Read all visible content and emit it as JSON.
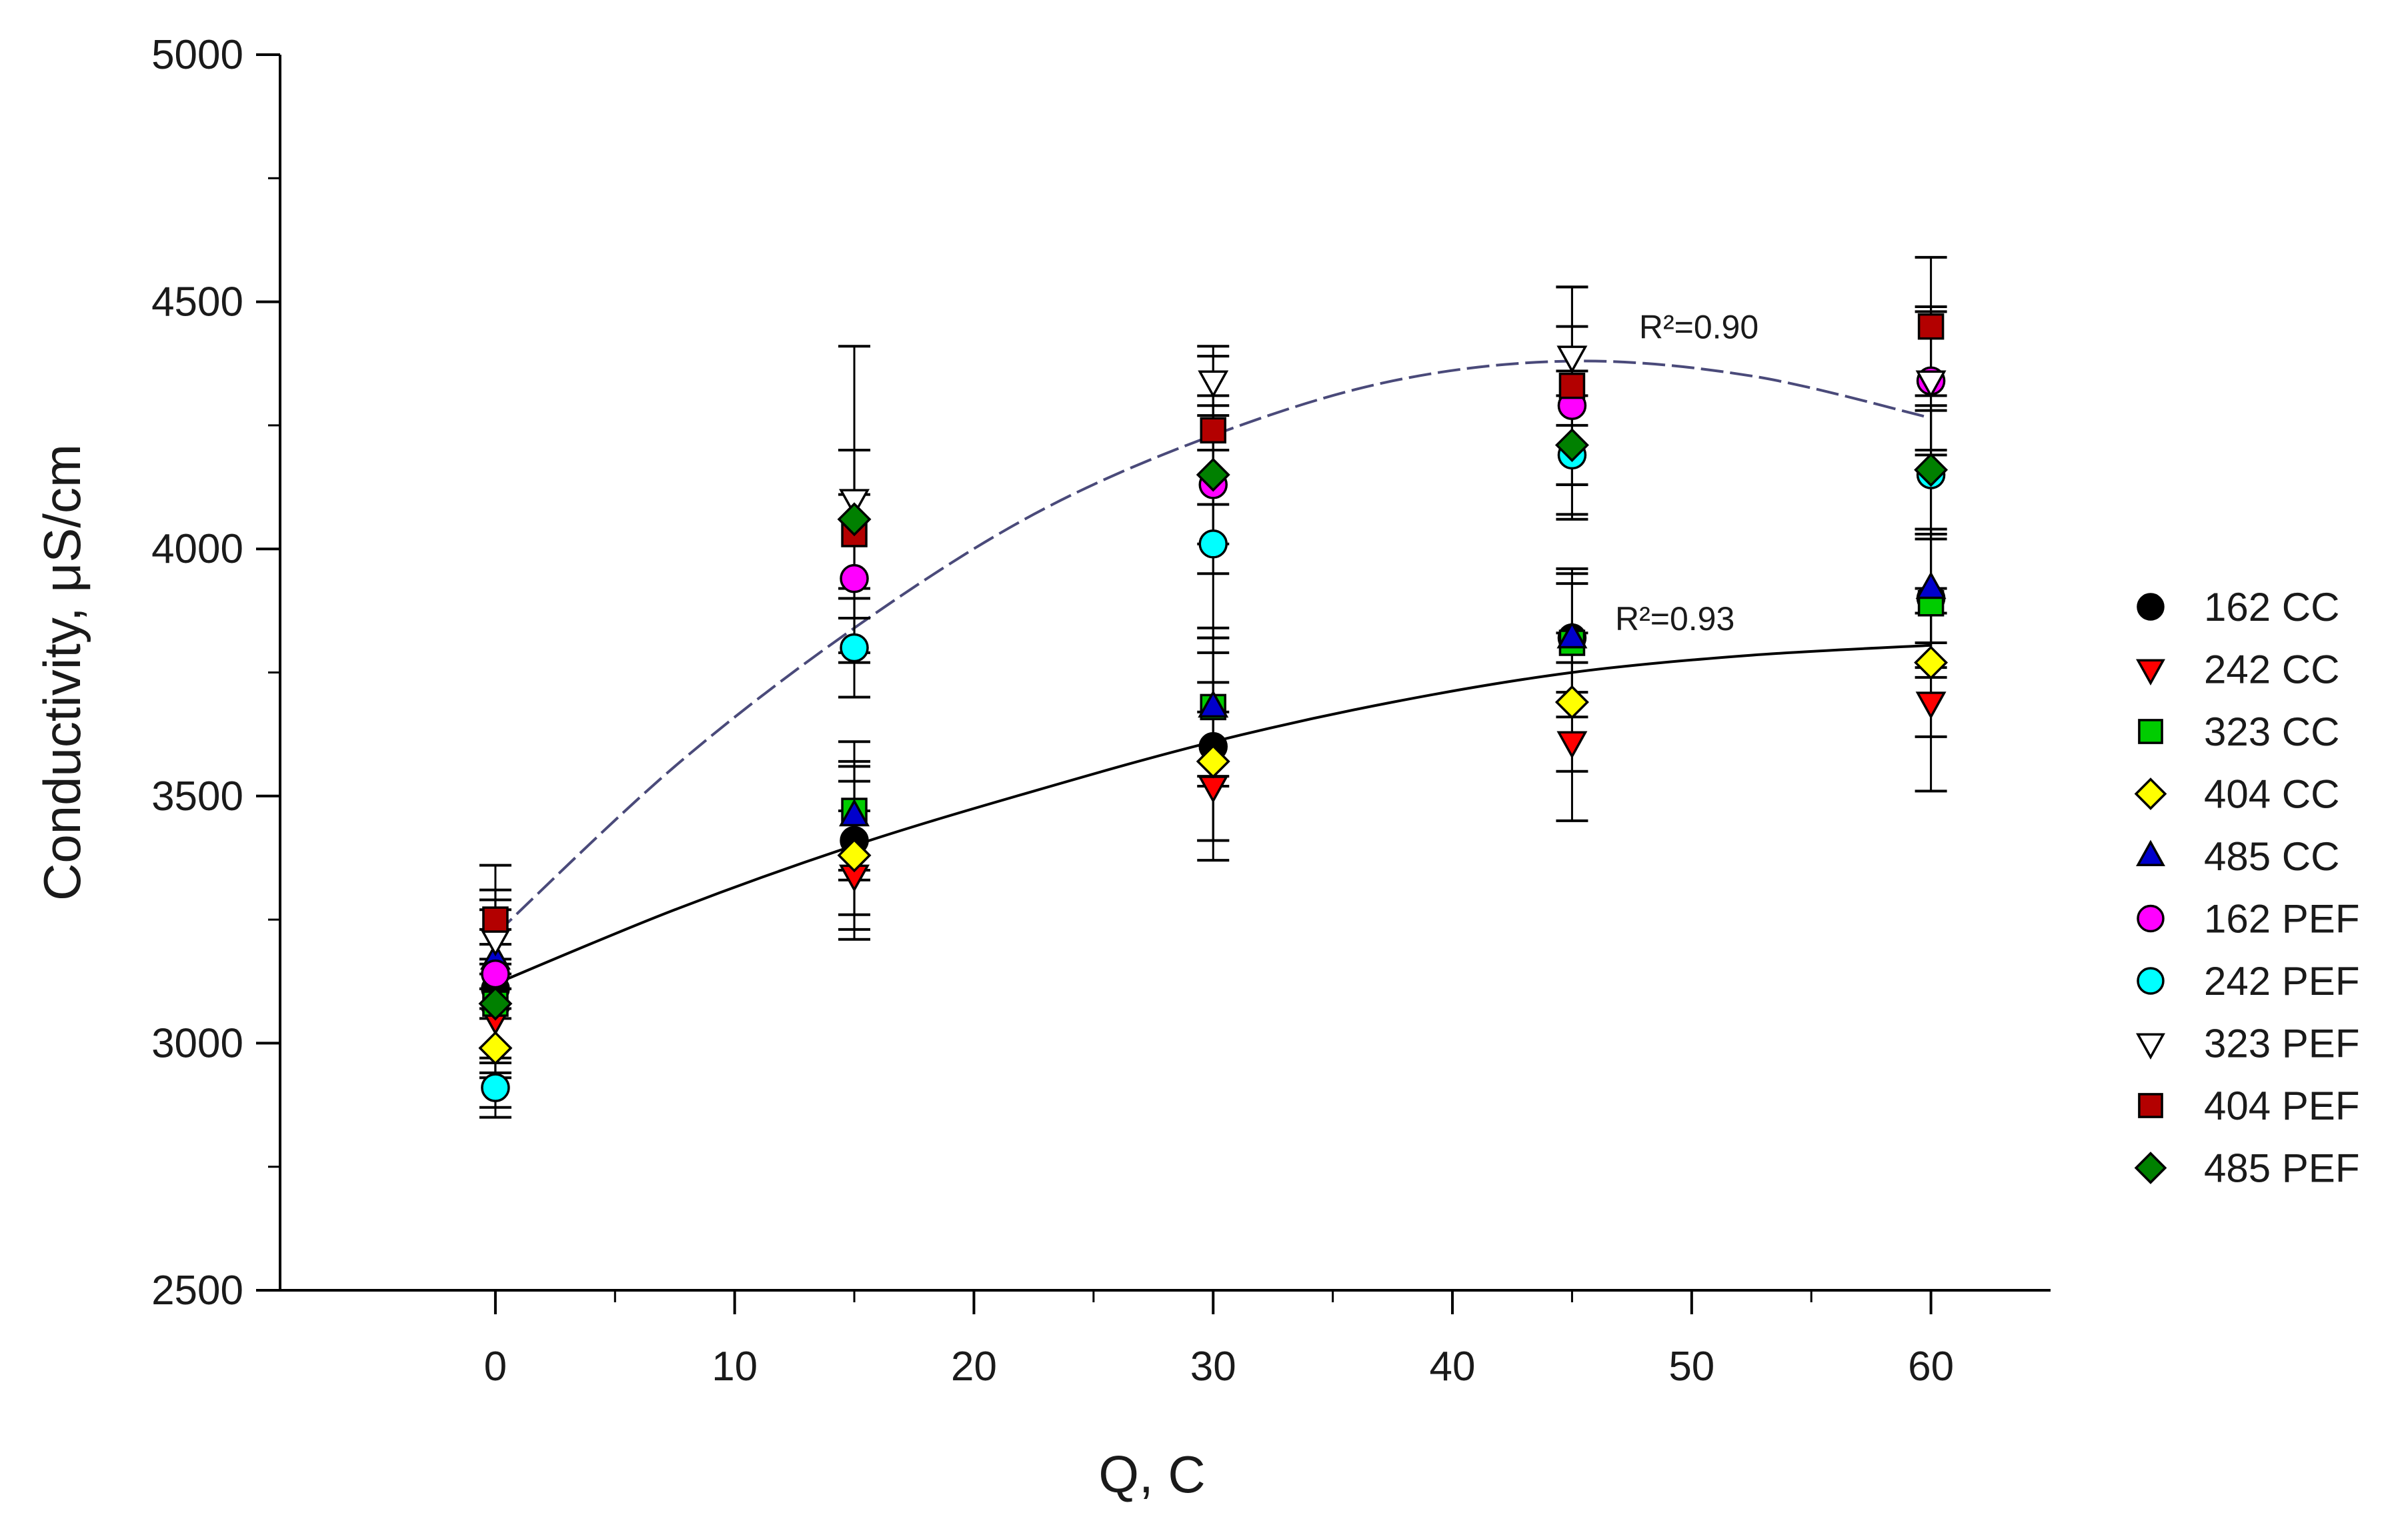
{
  "chart_data": {
    "type": "scatter",
    "title": "",
    "xlabel": "Q, C",
    "ylabel": "Conductivity, μS/cm",
    "xlim": [
      -9,
      65
    ],
    "ylim": [
      2500,
      5000
    ],
    "x_ticks": [
      0,
      10,
      20,
      30,
      40,
      50,
      60
    ],
    "y_ticks": [
      2500,
      3000,
      3500,
      4000,
      4500,
      5000
    ],
    "x_tick_labels": [
      "0",
      "10",
      "20",
      "30",
      "40",
      "50",
      "60"
    ],
    "y_tick_labels": [
      "2500",
      "3000",
      "3500",
      "4000",
      "4500",
      "5000"
    ],
    "grid": false,
    "legend_position": "right",
    "x": [
      0,
      15,
      30,
      45,
      60
    ],
    "series": [
      {
        "name": "162 CC",
        "marker": "circle",
        "color": "#000000",
        "values": [
          3110,
          3410,
          3600,
          3820,
          3900
        ],
        "error": [
          180,
          150,
          190,
          130,
          140
        ]
      },
      {
        "name": "242 CC",
        "marker": "triangle-down",
        "color": "#ff0000",
        "values": [
          3050,
          3340,
          3520,
          3610,
          3690
        ],
        "error": [
          110,
          130,
          150,
          160,
          180
        ]
      },
      {
        "name": "323 CC",
        "marker": "square",
        "color": "#00cc00",
        "values": [
          3080,
          3470,
          3680,
          3810,
          3890
        ],
        "error": [
          120,
          140,
          140,
          150,
          150
        ]
      },
      {
        "name": "404 CC",
        "marker": "diamond",
        "color": "#ffff00",
        "values": [
          2990,
          3380,
          3570,
          3690,
          3770
        ],
        "error": [
          120,
          150,
          160,
          140,
          150
        ]
      },
      {
        "name": "485 CC",
        "marker": "triangle-up",
        "color": "#0000cc",
        "values": [
          3170,
          3460,
          3680,
          3820,
          3920
        ],
        "error": [
          100,
          110,
          160,
          110,
          110
        ]
      },
      {
        "name": "162 PEF",
        "marker": "circle",
        "color": "#ff00ff",
        "values": [
          3140,
          3940,
          4130,
          4290,
          4340
        ],
        "error": [
          90,
          170,
          180,
          160,
          150
        ]
      },
      {
        "name": "242 PEF",
        "marker": "circle",
        "color": "#00ffff",
        "values": [
          2910,
          3800,
          4010,
          4190,
          4150
        ],
        "error": [
          60,
          100,
          190,
          120,
          130
        ]
      },
      {
        "name": "323 PEF",
        "marker": "triangle-down",
        "color": "#ffffff",
        "values": [
          3210,
          4100,
          4340,
          4390,
          4340
        ],
        "error": [
          100,
          310,
          70,
          140,
          140
        ]
      },
      {
        "name": "404 PEF",
        "marker": "square",
        "color": "#b30000",
        "values": [
          3250,
          4030,
          4240,
          4330,
          4450
        ],
        "error": [
          110,
          170,
          150,
          200,
          140
        ]
      },
      {
        "name": "485 PEF",
        "marker": "diamond",
        "color": "#008000",
        "values": [
          3080,
          4060,
          4150,
          4210,
          4160
        ],
        "error": [
          90,
          140,
          140,
          150,
          130
        ]
      }
    ],
    "fits": [
      {
        "label": "R²=0.90",
        "style": "dashed",
        "color": "#4a4a7a",
        "x": [
          0,
          7.5,
          15,
          22.5,
          30,
          37.5,
          45,
          52.5,
          60
        ],
        "values": [
          3220,
          3560,
          3840,
          4070,
          4230,
          4340,
          4380,
          4350,
          4265
        ]
      },
      {
        "label": "R²=0.93",
        "style": "solid",
        "color": "#000000",
        "x": [
          0,
          7.5,
          15,
          22.5,
          30,
          37.5,
          45,
          52.5,
          60
        ],
        "values": [
          3120,
          3270,
          3400,
          3510,
          3610,
          3690,
          3750,
          3785,
          3805
        ]
      }
    ]
  }
}
